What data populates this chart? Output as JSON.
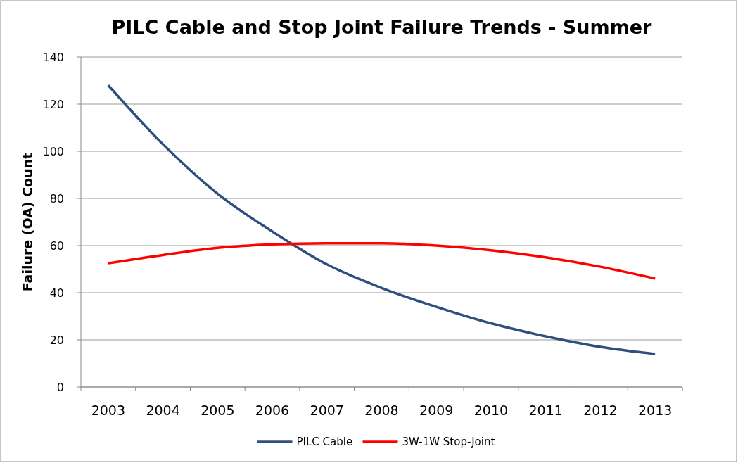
{
  "chart_data": {
    "type": "line",
    "title": "PILC Cable and Stop Joint Failure Trends - Summer",
    "ylabel": "Failure (OA) Count",
    "categories": [
      "2003",
      "2004",
      "2005",
      "2006",
      "2007",
      "2008",
      "2009",
      "2010",
      "2011",
      "2012",
      "2013"
    ],
    "series": [
      {
        "name": "PILC Cable",
        "color": "#2f4f7f",
        "values": [
          128,
          103,
          82,
          66,
          52,
          42,
          34,
          27,
          21.5,
          17,
          14
        ]
      },
      {
        "name": "3W-1W Stop-Joint",
        "color": "#ff0000",
        "values": [
          52.5,
          56,
          59,
          60.5,
          61,
          61,
          60,
          58,
          55,
          51,
          46
        ]
      }
    ],
    "ylim": [
      0,
      140
    ],
    "yticks": [
      0,
      20,
      40,
      60,
      80,
      100,
      120,
      140
    ],
    "grid": "y",
    "legend": "bottom",
    "marker": "none",
    "line_style": "solid"
  }
}
